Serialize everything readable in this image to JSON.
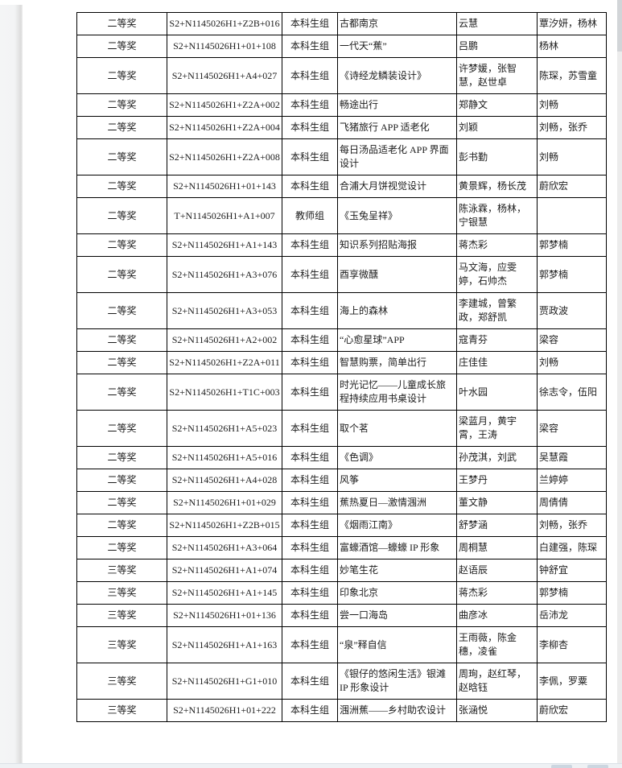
{
  "colors": {
    "page_bg": "#ffffff",
    "app_bg": "#f4f5f6",
    "table_border": "#000000",
    "text": "#1c1c1c",
    "bottom_bar": "#eef1f4",
    "scrollbar_thumb": "#d2d5d8"
  },
  "table": {
    "column_names": [
      "award",
      "code",
      "group",
      "title",
      "authors",
      "advisors"
    ],
    "rows": [
      {
        "award": "二等奖",
        "code": "S2+N1145026H1+Z2B+016",
        "group": "本科生组",
        "title": "古都南京",
        "authors": "云慧",
        "advisors": "覃汐妍，杨林"
      },
      {
        "award": "二等奖",
        "code": "S2+N1145026H1+01+108",
        "group": "本科生组",
        "title": "一代天“蕉”",
        "authors": "吕鹏",
        "advisors": "杨林"
      },
      {
        "award": "二等奖",
        "code": "S2+N1145026H1+A4+027",
        "group": "本科生组",
        "title": "《诗经龙鳞装设计》",
        "authors": "许梦媛，张智慧，赵世卓",
        "advisors": "陈琛，苏雪童"
      },
      {
        "award": "二等奖",
        "code": "S2+N1145026H1+Z2A+002",
        "group": "本科生组",
        "title": "畅途出行",
        "authors": "郑静文",
        "advisors": "刘畅"
      },
      {
        "award": "二等奖",
        "code": "S2+N1145026H1+Z2A+004",
        "group": "本科生组",
        "title": "飞猪旅行 APP 适老化",
        "authors": "刘颖",
        "advisors": "刘畅，张乔"
      },
      {
        "award": "二等奖",
        "code": "S2+N1145026H1+Z2A+008",
        "group": "本科生组",
        "title": "每日汤品适老化 APP 界面设计",
        "authors": "彭书勤",
        "advisors": "刘畅"
      },
      {
        "award": "二等奖",
        "code": "S2+N1145026H1+01+143",
        "group": "本科生组",
        "title": "合浦大月饼视觉设计",
        "authors": "黄景辉，杨长茂",
        "advisors": "蔚欣宏"
      },
      {
        "award": "二等奖",
        "code": "T+N1145026H1+A1+007",
        "group": "教师组",
        "title": "《玉兔呈祥》",
        "authors": "陈泳霖，杨林，宁银慧",
        "advisors": ""
      },
      {
        "award": "二等奖",
        "code": "S2+N1145026H1+A1+143",
        "group": "本科生组",
        "title": "知识系列招贴海报",
        "authors": "蒋杰彩",
        "advisors": "郭梦楠"
      },
      {
        "award": "二等奖",
        "code": "S2+N1145026H1+A3+076",
        "group": "本科生组",
        "title": "酉享微醺",
        "authors": "马文海，应雯婷，石帅杰",
        "advisors": "郭梦楠"
      },
      {
        "award": "二等奖",
        "code": "S2+N1145026H1+A3+053",
        "group": "本科生组",
        "title": "海上的森林",
        "authors": "李建城，曾繁政，郑舒凯",
        "advisors": "贾政波"
      },
      {
        "award": "二等奖",
        "code": "S2+N1145026H1+A2+002",
        "group": "本科生组",
        "title": "“心愈星球”APP",
        "authors": "寇青芬",
        "advisors": "梁容"
      },
      {
        "award": "二等奖",
        "code": "S2+N1145026H1+Z2A+011",
        "group": "本科生组",
        "title": "智慧购票，简单出行",
        "authors": "庄佳佳",
        "advisors": "刘畅"
      },
      {
        "award": "二等奖",
        "code": "S2+N1145026H1+T1C+003",
        "group": "本科生组",
        "title": "时光记忆——儿童成长旅程持续应用书桌设计",
        "authors": "叶水园",
        "advisors": "徐志令，伍阳"
      },
      {
        "award": "二等奖",
        "code": "S2+N1145026H1+A5+023",
        "group": "本科生组",
        "title": "取个茗",
        "authors": "梁蓝月，黄宇霄，王涛",
        "advisors": "梁容"
      },
      {
        "award": "二等奖",
        "code": "S2+N1145026H1+A5+016",
        "group": "本科生组",
        "title": "《色调》",
        "authors": "孙茂淇，刘武",
        "advisors": "吴慧霞"
      },
      {
        "award": "二等奖",
        "code": "S2+N1145026H1+A4+028",
        "group": "本科生组",
        "title": "风筝",
        "authors": "王梦丹",
        "advisors": "兰婷婷"
      },
      {
        "award": "二等奖",
        "code": "S2+N1145026H1+01+029",
        "group": "本科生组",
        "title": "蕉热夏日—激情涠洲",
        "authors": "董文静",
        "advisors": "周倩倩"
      },
      {
        "award": "二等奖",
        "code": "S2+N1145026H1+Z2B+015",
        "group": "本科生组",
        "title": "《烟雨江南》",
        "authors": "舒梦涵",
        "advisors": "刘畅，张乔"
      },
      {
        "award": "二等奖",
        "code": "S2+N1145026H1+A3+064",
        "group": "本科生组",
        "title": "富蠔酒馆—蠔蠔 IP 形象",
        "authors": "周桐慧",
        "advisors": "白建强，陈琛"
      },
      {
        "award": "三等奖",
        "code": "S2+N1145026H1+A1+074",
        "group": "本科生组",
        "title": "妙笔生花",
        "authors": "赵语辰",
        "advisors": "钟舒宜"
      },
      {
        "award": "三等奖",
        "code": "S2+N1145026H1+A1+145",
        "group": "本科生组",
        "title": "印象北京",
        "authors": "蒋杰彩",
        "advisors": "郭梦楠"
      },
      {
        "award": "三等奖",
        "code": "S2+N1145026H1+01+136",
        "group": "本科生组",
        "title": "尝一口海岛",
        "authors": "曲彦冰",
        "advisors": "岳沛龙"
      },
      {
        "award": "三等奖",
        "code": "S2+N1145026H1+A1+163",
        "group": "本科生组",
        "title": "“泉”释自信",
        "authors": "王雨薇，陈金穗，凌雀",
        "advisors": "李柳杏"
      },
      {
        "award": "三等奖",
        "code": "S2+N1145026H1+G1+010",
        "group": "本科生组",
        "title": "《银仔的悠闲生活》银滩 IP 形象设计",
        "authors": "周珣，赵红琴，赵晗钰",
        "advisors": "李佩，罗粟"
      },
      {
        "award": "三等奖",
        "code": "S2+N1145026H1+01+222",
        "group": "本科生组",
        "title": "涠洲蕉——乡村助农设计",
        "authors": "张涵悦",
        "advisors": "蔚欣宏"
      }
    ]
  }
}
